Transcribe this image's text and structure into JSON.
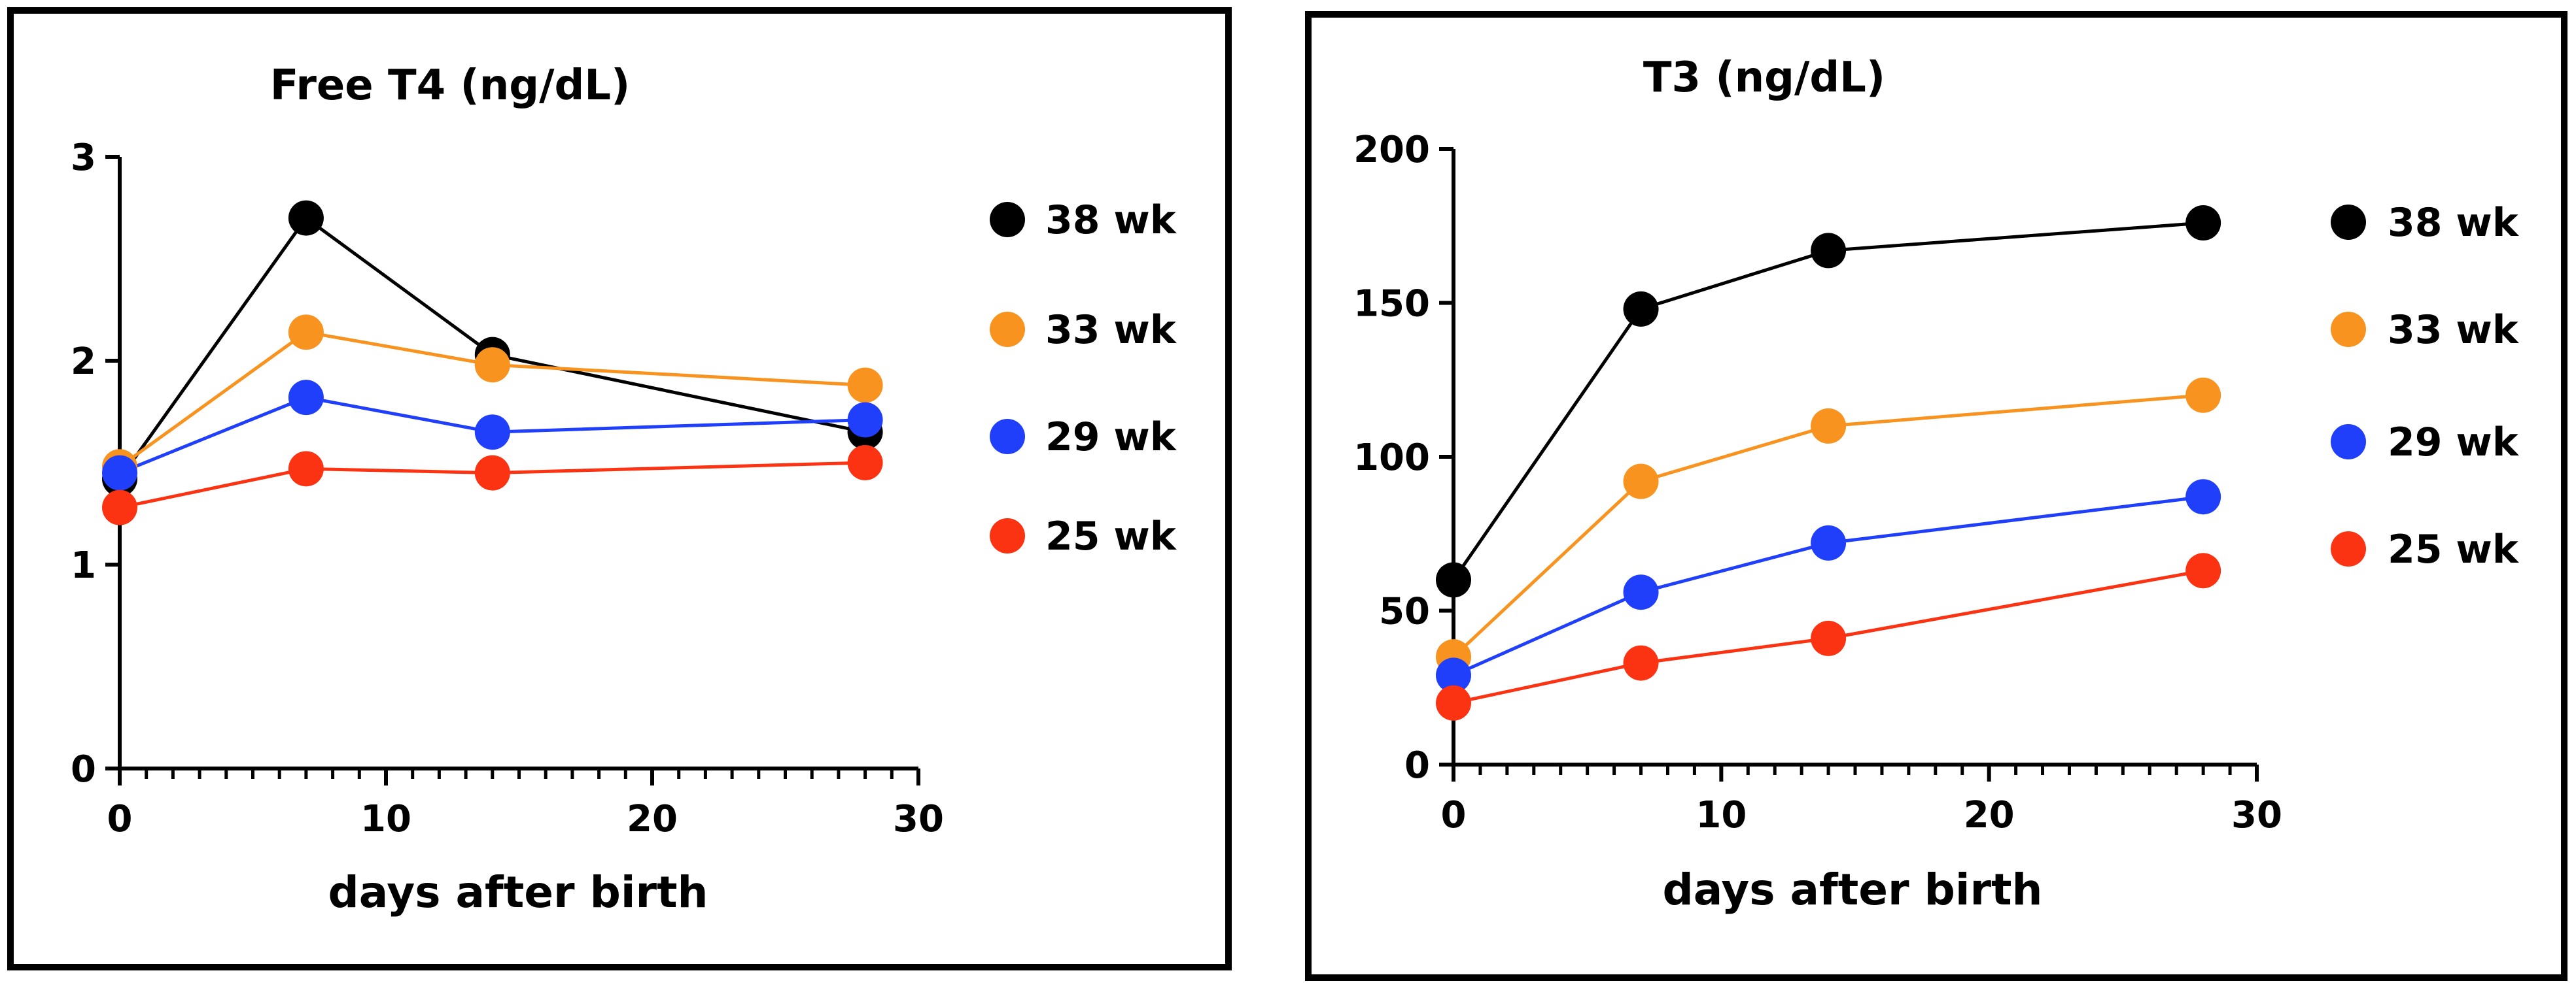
{
  "colors": {
    "38 wk": "#000000",
    "33 wk": "#f7931e",
    "29 wk": "#1f3ffb",
    "25 wk": "#fb3312"
  },
  "chart_data": [
    {
      "type": "line",
      "title": "Free T4 (ng/dL)",
      "xlabel": "days after birth",
      "ylabel": "",
      "xlim": [
        0,
        30
      ],
      "ylim": [
        0,
        3
      ],
      "xticks": [
        "0",
        "10",
        "20",
        "30"
      ],
      "yticks": [
        "0",
        "1",
        "2",
        "3"
      ],
      "x": [
        0,
        7,
        14,
        28
      ],
      "series": [
        {
          "name": "38 wk",
          "color": "#000000",
          "values": [
            1.42,
            2.7,
            2.03,
            1.65
          ]
        },
        {
          "name": "33 wk",
          "color": "#f7931e",
          "values": [
            1.48,
            2.14,
            1.98,
            1.88
          ]
        },
        {
          "name": "29 wk",
          "color": "#1f3ffb",
          "values": [
            1.45,
            1.82,
            1.65,
            1.71
          ]
        },
        {
          "name": "25 wk",
          "color": "#fb3312",
          "values": [
            1.28,
            1.47,
            1.45,
            1.5
          ]
        }
      ]
    },
    {
      "type": "line",
      "title": "T3 (ng/dL)",
      "xlabel": "days after birth",
      "ylabel": "",
      "xlim": [
        0,
        30
      ],
      "ylim": [
        0,
        200
      ],
      "xticks": [
        "0",
        "10",
        "20",
        "30"
      ],
      "yticks": [
        "0",
        "50",
        "100",
        "150",
        "200"
      ],
      "x": [
        0,
        7,
        14,
        28
      ],
      "series": [
        {
          "name": "38 wk",
          "color": "#000000",
          "values": [
            60,
            148,
            167,
            176
          ]
        },
        {
          "name": "33 wk",
          "color": "#f7931e",
          "values": [
            35,
            92,
            110,
            120
          ]
        },
        {
          "name": "29 wk",
          "color": "#1f3ffb",
          "values": [
            29,
            56,
            72,
            87
          ]
        },
        {
          "name": "25 wk",
          "color": "#fb3312",
          "values": [
            20,
            33,
            41,
            63
          ]
        }
      ]
    }
  ]
}
